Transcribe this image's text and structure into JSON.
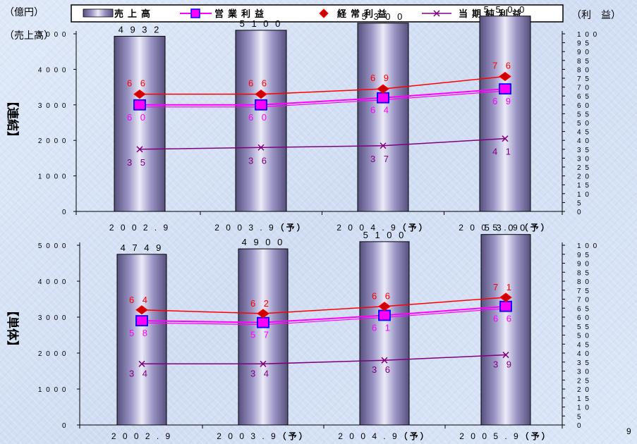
{
  "page_number": "9",
  "colors": {
    "net_sales": "#7a70a8",
    "operating_income": "#ff00ff",
    "ordinary_income": "#ff0000",
    "net_income": "#800080"
  },
  "legend": [
    {
      "key": "net_sales",
      "label": "売上高",
      "icon": "bar-swatch"
    },
    {
      "key": "operating_income",
      "label": "営業利益",
      "icon": "square-marker-line"
    },
    {
      "key": "ordinary_income",
      "label": "経常利益",
      "icon": "diamond-marker"
    },
    {
      "key": "net_income",
      "label": "当期純利益",
      "icon": "x-marker-line"
    }
  ],
  "top_left_unit": "（億円）",
  "top_right_unit": "（利　益）",
  "chart_data": [
    {
      "type": "bar",
      "side_label": "【連結】",
      "left_axis_label": "（売上高）",
      "categories": [
        "2002.9",
        "2003.9（予）",
        "2004.9（予）",
        "2005.9（予）"
      ],
      "ylim_left": [
        0,
        5000
      ],
      "left_ticks": [
        0,
        1000,
        2000,
        3000,
        4000,
        5000
      ],
      "ylim_right": [
        0,
        100
      ],
      "right_ticks": [
        0,
        5,
        10,
        15,
        20,
        25,
        30,
        35,
        40,
        45,
        50,
        55,
        60,
        65,
        70,
        75,
        80,
        85,
        90,
        95,
        100
      ],
      "series": [
        {
          "name": "売上高",
          "type": "bar",
          "axis": "left",
          "values": [
            4932,
            5100,
            5300,
            5500
          ]
        },
        {
          "name": "営業利益",
          "type": "line",
          "axis": "right",
          "values": [
            60,
            60,
            64,
            69
          ]
        },
        {
          "name": "経常利益",
          "type": "line",
          "axis": "right",
          "values": [
            66,
            66,
            69,
            76
          ]
        },
        {
          "name": "当期純利益",
          "type": "line",
          "axis": "right",
          "values": [
            35,
            36,
            37,
            41
          ]
        }
      ]
    },
    {
      "type": "bar",
      "side_label": "【単体】",
      "left_axis_label": "",
      "categories": [
        "2002.9",
        "2003.9（予）",
        "2004.9（予）",
        "2005.9（予）"
      ],
      "ylim_left": [
        0,
        5000
      ],
      "left_ticks": [
        0,
        1000,
        2000,
        3000,
        4000,
        5000
      ],
      "ylim_right": [
        0,
        100
      ],
      "right_ticks": [
        0,
        5,
        10,
        15,
        20,
        25,
        30,
        35,
        40,
        45,
        50,
        55,
        60,
        65,
        70,
        75,
        80,
        85,
        90,
        95,
        100
      ],
      "series": [
        {
          "name": "売上高",
          "type": "bar",
          "axis": "left",
          "values": [
            4749,
            4900,
            5100,
            5300
          ]
        },
        {
          "name": "営業利益",
          "type": "line",
          "axis": "right",
          "values": [
            58,
            57,
            61,
            66
          ]
        },
        {
          "name": "経常利益",
          "type": "line",
          "axis": "right",
          "values": [
            64,
            62,
            66,
            71
          ]
        },
        {
          "name": "当期純利益",
          "type": "line",
          "axis": "right",
          "values": [
            34,
            34,
            36,
            39
          ]
        }
      ]
    }
  ]
}
